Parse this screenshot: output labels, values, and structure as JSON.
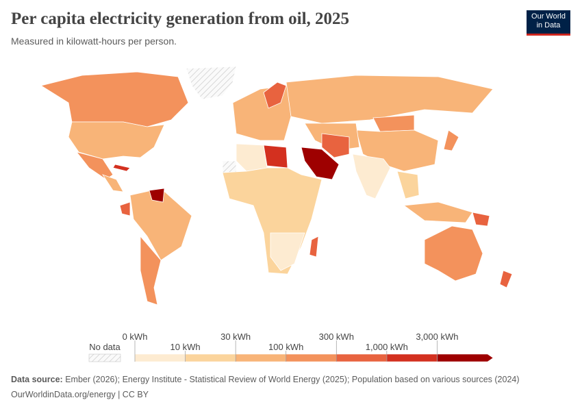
{
  "header": {
    "title": "Per capita electricity generation from oil, 2025",
    "subtitle": "Measured in kilowatt-hours per person."
  },
  "logo": [
    "Our World",
    "in Data"
  ],
  "legend": {
    "no_data": "No data",
    "ticks": [
      "0 kWh",
      "10 kWh",
      "30 kWh",
      "100 kWh",
      "300 kWh",
      "1,000 kWh",
      "3,000 kWh"
    ],
    "colors": [
      "#fdebd1",
      "#fbd49c",
      "#f8b478",
      "#f3925c",
      "#e8633f",
      "#d3301f",
      "#9e0000"
    ]
  },
  "footer": {
    "source_label": "Data source:",
    "source": "Ember (2026); Energy Institute - Statistical Review of World Energy (2025); Population based on various sources (2024)",
    "url": "OurWorldinData.org/energy | CC BY"
  }
}
